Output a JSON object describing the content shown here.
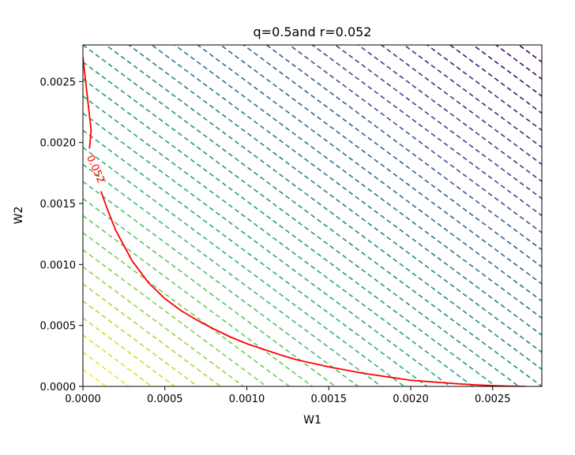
{
  "chart_data": {
    "type": "contour",
    "title": "q=0.5and r=0.052",
    "xlabel": "W1",
    "ylabel": "W2",
    "xlim": [
      0,
      0.0028
    ],
    "ylim": [
      0,
      0.0028
    ],
    "x_ticks": [
      0.0,
      0.0005,
      0.001,
      0.0015,
      0.002,
      0.0025
    ],
    "x_tick_labels": [
      "0.0000",
      "0.0005",
      "0.0010",
      "0.0015",
      "0.0020",
      "0.0025"
    ],
    "y_ticks": [
      0.0,
      0.0005,
      0.001,
      0.0015,
      0.002,
      0.0025
    ],
    "y_tick_labels": [
      "0.0000",
      "0.0005",
      "0.0010",
      "0.0015",
      "0.0020",
      "0.0025"
    ],
    "grid": false,
    "budget_lines": {
      "style": "dashed",
      "colormap": "viridis (yellow at low W1+W2, purple at high W1+W2)",
      "levels_w1_plus_w2": [
        0.00014,
        0.00028,
        0.00042,
        0.00056,
        0.0007,
        0.00084,
        0.00098,
        0.00112,
        0.00126,
        0.0014,
        0.00154,
        0.00168,
        0.00182,
        0.00196,
        0.0021,
        0.00224,
        0.00238,
        0.00252,
        0.00266,
        0.0028,
        0.00294,
        0.00308,
        0.00322,
        0.00336,
        0.0035,
        0.00364,
        0.00378,
        0.00392,
        0.00406,
        0.0042,
        0.00434,
        0.00448,
        0.00462,
        0.00476,
        0.0049,
        0.00504,
        0.00518,
        0.00532,
        0.00546
      ]
    },
    "indifference_curve": {
      "color": "#ff0000",
      "level_label": "0.052",
      "points": [
        [
          0.0,
          0.0027
        ],
        [
          5e-05,
          0.0021
        ],
        [
          0.0001,
          0.0017
        ],
        [
          0.00015,
          0.00145
        ],
        [
          0.0002,
          0.00128
        ],
        [
          0.0003,
          0.00103
        ],
        [
          0.0004,
          0.00085
        ],
        [
          0.0005,
          0.00072
        ],
        [
          0.0006,
          0.00062
        ],
        [
          0.0007,
          0.00054
        ],
        [
          0.0008,
          0.00047
        ],
        [
          0.0009,
          0.000405
        ],
        [
          0.001,
          0.00035
        ],
        [
          0.0011,
          0.000305
        ],
        [
          0.0012,
          0.00026
        ],
        [
          0.0013,
          0.00022
        ],
        [
          0.0014,
          0.00019
        ],
        [
          0.0015,
          0.00016
        ],
        [
          0.0016,
          0.000135
        ],
        [
          0.0017,
          0.00011
        ],
        [
          0.0018,
          9e-05
        ],
        [
          0.0019,
          7e-05
        ],
        [
          0.002,
          5e-05
        ],
        [
          0.0021,
          4e-05
        ],
        [
          0.0022,
          3e-05
        ],
        [
          0.0023,
          2e-05
        ],
        [
          0.0024,
          1.2e-05
        ],
        [
          0.0025,
          6e-06
        ],
        [
          0.0026,
          2e-06
        ],
        [
          0.0027,
          0.0
        ]
      ]
    }
  }
}
